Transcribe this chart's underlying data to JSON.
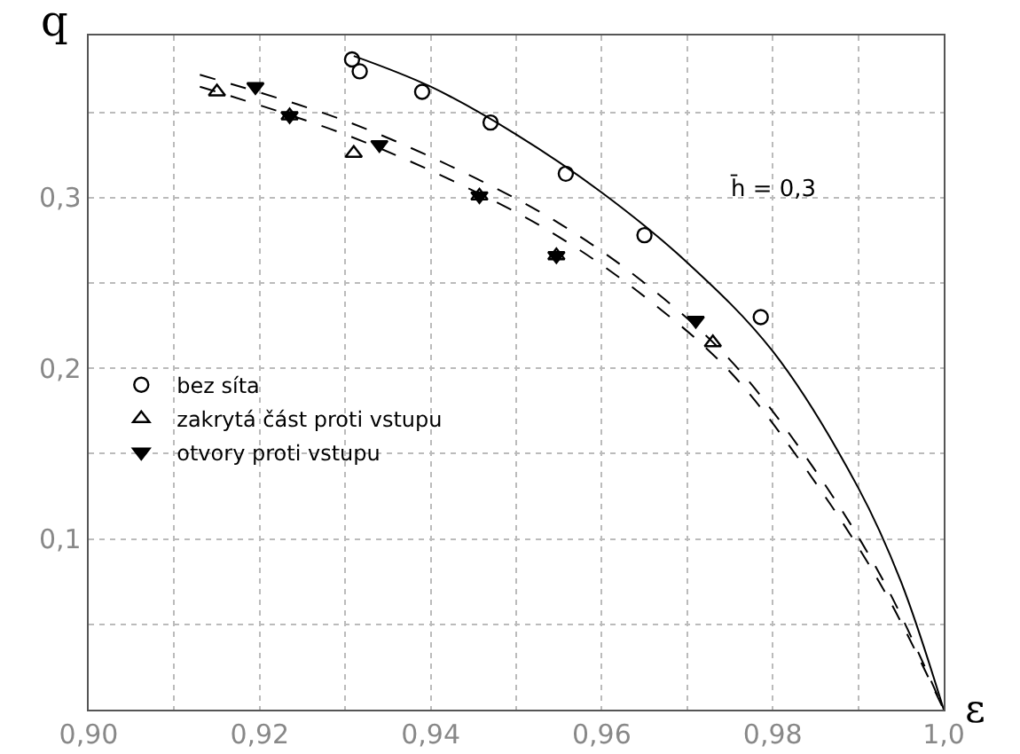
{
  "chart_data": {
    "type": "scatter",
    "xlabel": "ε",
    "ylabel": "q",
    "annotations": [
      "h̄ = 0,3"
    ],
    "xlim": [
      0.9,
      1.0
    ],
    "xticks": [
      {
        "value": 0.9,
        "label": "0,90"
      },
      {
        "value": 0.91,
        "label": null
      },
      {
        "value": 0.92,
        "label": "0,92"
      },
      {
        "value": 0.93,
        "label": null
      },
      {
        "value": 0.94,
        "label": "0,94"
      },
      {
        "value": 0.95,
        "label": null
      },
      {
        "value": 0.96,
        "label": "0,96"
      },
      {
        "value": 0.97,
        "label": null
      },
      {
        "value": 0.98,
        "label": "0,98"
      },
      {
        "value": 0.99,
        "label": null
      },
      {
        "value": 1.0,
        "label": "1,0"
      }
    ],
    "ylim": [
      0,
      0.395
    ],
    "yticks": [
      {
        "value": 0.05,
        "label": null
      },
      {
        "value": 0.1,
        "label": "0,1"
      },
      {
        "value": 0.15,
        "label": null
      },
      {
        "value": 0.2,
        "label": "0,2"
      },
      {
        "value": 0.25,
        "label": null
      },
      {
        "value": 0.3,
        "label": "0,3"
      },
      {
        "value": 0.35,
        "label": null
      }
    ],
    "grid": true,
    "legend": "left",
    "series": [
      {
        "name": "bez síta",
        "marker": "circle",
        "color": "#000000",
        "x": [
          0.9308,
          0.9317,
          0.939,
          0.947,
          0.9558,
          0.965,
          0.9786
        ],
        "values": [
          0.381,
          0.374,
          0.362,
          0.344,
          0.314,
          0.278,
          0.23
        ]
      },
      {
        "name": "zakrytá část proti vstupu",
        "marker": "triangle",
        "color": "#000000",
        "x": [
          0.915,
          0.9235,
          0.931,
          0.9457,
          0.9547,
          0.973
        ],
        "values": [
          0.362,
          0.348,
          0.326,
          0.301,
          0.266,
          0.215
        ]
      },
      {
        "name": "otvory proti vstupu",
        "marker": "triangle-down",
        "color": "#000000",
        "x": [
          0.9195,
          0.9235,
          0.934,
          0.9457,
          0.9547,
          0.971
        ],
        "values": [
          0.365,
          0.348,
          0.331,
          0.301,
          0.266,
          0.228
        ]
      },
      {
        "type": "line",
        "line_style": "solid",
        "color": "#000000",
        "x": [
          0.931,
          0.94,
          0.95,
          0.96,
          0.97,
          0.98,
          0.99,
          0.995,
          1.0
        ],
        "values": [
          0.383,
          0.365,
          0.337,
          0.303,
          0.262,
          0.21,
          0.13,
          0.075,
          0
        ]
      },
      {
        "type": "line",
        "line_style": "dashed",
        "color": "#000000",
        "x": [
          0.913,
          0.93,
          0.945,
          0.955,
          0.965,
          0.975,
          0.985,
          0.993,
          1.0
        ],
        "values": [
          0.372,
          0.345,
          0.312,
          0.285,
          0.25,
          0.205,
          0.14,
          0.075,
          0
        ]
      },
      {
        "type": "line",
        "line_style": "dashed",
        "color": "#000000",
        "x": [
          0.913,
          0.93,
          0.945,
          0.955,
          0.965,
          0.975,
          0.985,
          0.993,
          1.0
        ],
        "values": [
          0.365,
          0.337,
          0.304,
          0.277,
          0.242,
          0.198,
          0.133,
          0.07,
          0
        ]
      }
    ]
  }
}
